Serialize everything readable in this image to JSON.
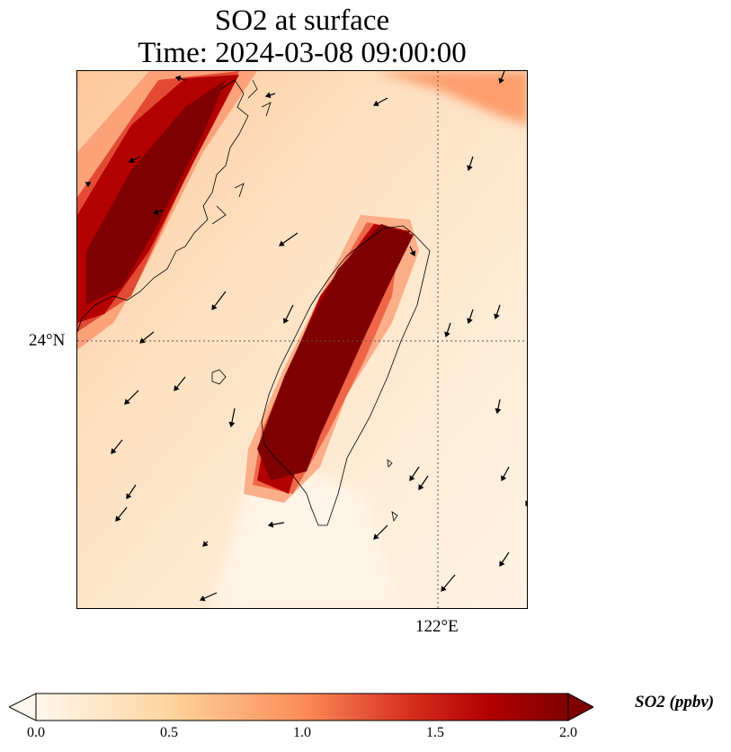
{
  "title_line1": "SO2 at surface",
  "title_line2": "Time: 2024-03-08 09:00:00",
  "axes": {
    "lat_tick_label": "24°N",
    "lon_tick_label": "122°E",
    "gridlines": "dotted"
  },
  "colorbar": {
    "label": "SO2 (ppbv)",
    "ticks": [
      "0.0",
      "0.5",
      "1.0",
      "1.5",
      "2.0"
    ],
    "min": 0.0,
    "max": 2.0,
    "colormap": "OrRd",
    "extend": "both",
    "colors": [
      "#fff7ec",
      "#fdd49e",
      "#fc8d59",
      "#d7301f",
      "#b30000",
      "#7f0000"
    ]
  },
  "chart_data": {
    "type": "heatmap",
    "title": "SO2 at surface\nTime: 2024-03-08 09:00:00",
    "variable": "SO2",
    "units": "ppbv",
    "range": [
      0.0,
      2.0
    ],
    "features": [
      "coastlines",
      "wind vectors"
    ],
    "high_concentration_regions": [
      "western Taiwan plain",
      "Fujian coast (northwest)"
    ]
  }
}
